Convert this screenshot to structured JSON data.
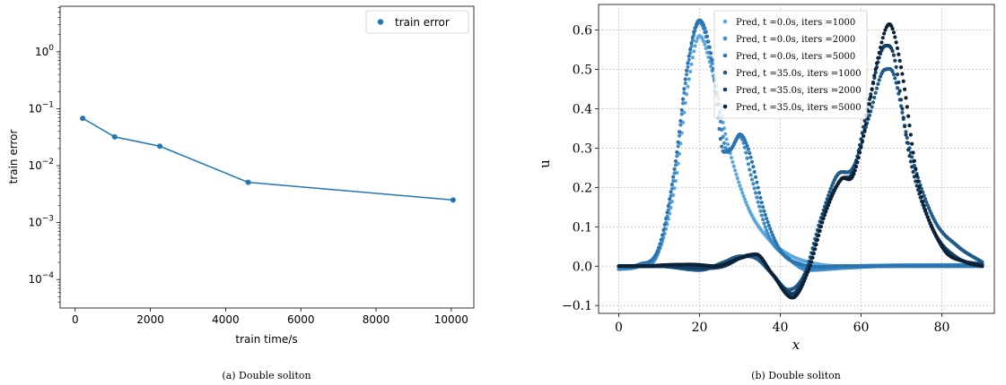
{
  "figure": {
    "caption_a": "(a) Double soliton",
    "caption_b": "(b) Double soliton"
  },
  "chart_data": [
    {
      "type": "line",
      "scale_y": "log",
      "xlabel": "train time/s",
      "ylabel": "train error",
      "xlim": [
        -400,
        10600
      ],
      "ylim_exp": [
        -4.5,
        0.8
      ],
      "xticks": [
        0,
        2000,
        4000,
        6000,
        8000,
        10000
      ],
      "xtick_labels": [
        "0",
        "2000",
        "4000",
        "6000",
        "8000",
        "10000"
      ],
      "yticks_exp": [
        0,
        -1,
        -2,
        -3,
        -4
      ],
      "ytick_labels": [
        "10^0",
        "10^-1",
        "10^-2",
        "10^-3",
        "10^-4"
      ],
      "legend": {
        "position": "top-right"
      },
      "grid": false,
      "series": [
        {
          "name": "train error",
          "color": "#1f77b4",
          "x": [
            200,
            1050,
            2250,
            4600,
            10050
          ],
          "y": [
            0.068,
            0.032,
            0.022,
            0.0051,
            0.0025
          ]
        }
      ]
    },
    {
      "type": "scatter",
      "xlabel": "x",
      "ylabel": "u",
      "xlim": [
        -5,
        93
      ],
      "ylim": [
        -0.12,
        0.665
      ],
      "xticks": [
        0,
        20,
        40,
        60,
        80
      ],
      "xtick_labels": [
        "0",
        "20",
        "40",
        "60",
        "80"
      ],
      "yticks": [
        -0.1,
        0.0,
        0.1,
        0.2,
        0.3,
        0.4,
        0.5,
        0.6
      ],
      "ytick_labels": [
        "−0.1",
        "0.0",
        "0.1",
        "0.2",
        "0.3",
        "0.4",
        "0.5",
        "0.6"
      ],
      "grid": true,
      "legend": {
        "position": "top-center"
      },
      "series": [
        {
          "name": "Pred, t =0.0s, iters =1000",
          "t_label": "t =0.0s",
          "iters_label": "iters =1000",
          "color": "#5ba7dd",
          "points": [
            [
              0,
              0
            ],
            [
              5,
              0.004
            ],
            [
              10,
              0.04
            ],
            [
              14,
              0.21
            ],
            [
              17,
              0.45
            ],
            [
              20,
              0.585
            ],
            [
              23,
              0.5
            ],
            [
              27,
              0.31
            ],
            [
              32,
              0.15
            ],
            [
              37,
              0.07
            ],
            [
              42,
              0.03
            ],
            [
              47,
              0.01
            ],
            [
              55,
              0.0
            ],
            [
              65,
              0.002
            ],
            [
              75,
              0.003
            ],
            [
              85,
              0.003
            ],
            [
              90,
              0.004
            ]
          ]
        },
        {
          "name": "Pred, t =0.0s, iters =2000",
          "t_label": "t =0.0s",
          "iters_label": "iters =2000",
          "color": "#3d8cc8",
          "points": [
            [
              0,
              -0.008
            ],
            [
              5,
              0.0
            ],
            [
              10,
              0.04
            ],
            [
              14,
              0.25
            ],
            [
              17,
              0.5
            ],
            [
              20,
              0.62
            ],
            [
              23,
              0.52
            ],
            [
              27,
              0.29
            ],
            [
              30,
              0.33
            ],
            [
              33,
              0.22
            ],
            [
              37,
              0.08
            ],
            [
              42,
              0.02
            ],
            [
              47,
              -0.01
            ],
            [
              55,
              -0.005
            ],
            [
              65,
              0.0
            ],
            [
              75,
              0.002
            ],
            [
              85,
              0.003
            ],
            [
              90,
              0.0
            ]
          ]
        },
        {
          "name": "Pred, t =0.0s, iters =5000",
          "t_label": "t =0.0s",
          "iters_label": "iters =5000",
          "color": "#2b74b0",
          "points": [
            [
              0,
              0
            ],
            [
              5,
              0.004
            ],
            [
              10,
              0.05
            ],
            [
              14,
              0.26
            ],
            [
              17,
              0.51
            ],
            [
              20,
              0.625
            ],
            [
              23,
              0.53
            ],
            [
              26,
              0.29
            ],
            [
              28,
              0.3
            ],
            [
              30,
              0.335
            ],
            [
              32,
              0.3
            ],
            [
              36,
              0.14
            ],
            [
              40,
              0.04
            ],
            [
              45,
              0.005
            ],
            [
              55,
              0.0
            ],
            [
              65,
              0.0
            ],
            [
              75,
              0.0
            ],
            [
              85,
              0.0
            ],
            [
              90,
              0.0
            ]
          ]
        },
        {
          "name": "Pred, t =35.0s, iters =1000",
          "t_label": "t =35.0s",
          "iters_label": "iters =1000",
          "color": "#1f5a8a",
          "points": [
            [
              0,
              0.0
            ],
            [
              10,
              0.0
            ],
            [
              20,
              -0.01
            ],
            [
              26,
              0.01
            ],
            [
              30,
              0.025
            ],
            [
              34,
              0.02
            ],
            [
              38,
              -0.02
            ],
            [
              42,
              -0.06
            ],
            [
              46,
              -0.02
            ],
            [
              50,
              0.12
            ],
            [
              54,
              0.23
            ],
            [
              58,
              0.25
            ],
            [
              62,
              0.38
            ],
            [
              66,
              0.5
            ],
            [
              68,
              0.49
            ],
            [
              72,
              0.3
            ],
            [
              78,
              0.12
            ],
            [
              84,
              0.05
            ],
            [
              90,
              0.01
            ]
          ]
        },
        {
          "name": "Pred, t =35.0s, iters =2000",
          "t_label": "t =35.0s",
          "iters_label": "iters =2000",
          "color": "#153e63",
          "points": [
            [
              0,
              0.0
            ],
            [
              10,
              0.0
            ],
            [
              20,
              -0.005
            ],
            [
              26,
              0.0
            ],
            [
              31,
              0.025
            ],
            [
              34,
              0.03
            ],
            [
              38,
              -0.02
            ],
            [
              43,
              -0.07
            ],
            [
              47,
              0.0
            ],
            [
              51,
              0.14
            ],
            [
              55,
              0.22
            ],
            [
              58,
              0.24
            ],
            [
              62,
              0.42
            ],
            [
              66,
              0.56
            ],
            [
              68,
              0.54
            ],
            [
              72,
              0.28
            ],
            [
              78,
              0.09
            ],
            [
              84,
              0.02
            ],
            [
              90,
              0.004
            ]
          ]
        },
        {
          "name": "Pred, t =35.0s, iters =5000",
          "t_label": "t =35.0s",
          "iters_label": "iters =5000",
          "color": "#0b2236",
          "points": [
            [
              0,
              0.0
            ],
            [
              6,
              0.0
            ],
            [
              12,
              0.003
            ],
            [
              18,
              0.004
            ],
            [
              24,
              0.0
            ],
            [
              30,
              0.02
            ],
            [
              34,
              0.03
            ],
            [
              38,
              -0.02
            ],
            [
              43,
              -0.08
            ],
            [
              47,
              -0.01
            ],
            [
              51,
              0.13
            ],
            [
              55,
              0.22
            ],
            [
              58,
              0.23
            ],
            [
              61,
              0.35
            ],
            [
              64,
              0.52
            ],
            [
              67,
              0.615
            ],
            [
              70,
              0.5
            ],
            [
              74,
              0.22
            ],
            [
              80,
              0.05
            ],
            [
              86,
              0.01
            ],
            [
              90,
              0.0
            ]
          ]
        }
      ]
    }
  ]
}
